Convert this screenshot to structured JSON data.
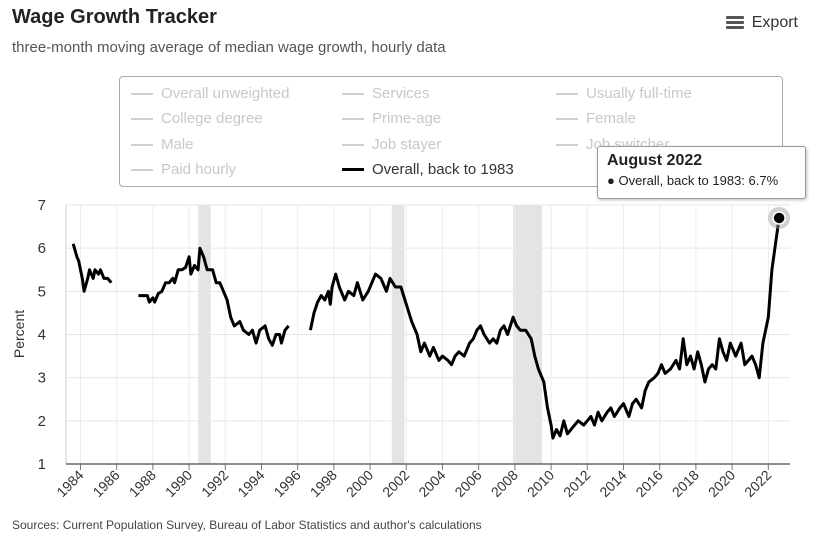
{
  "header": {
    "title": "Wage Growth Tracker",
    "subtitle": "three-month moving average of median wage growth, hourly data",
    "export_label": "Export",
    "export_icon": "menu-icon"
  },
  "legend": {
    "items": [
      {
        "label": "Overall unweighted",
        "active": false
      },
      {
        "label": "Services",
        "active": false
      },
      {
        "label": "Usually full-time",
        "active": false
      },
      {
        "label": "College degree",
        "active": false
      },
      {
        "label": "Prime-age",
        "active": false
      },
      {
        "label": "Female",
        "active": false
      },
      {
        "label": "Male",
        "active": false
      },
      {
        "label": "Job stayer",
        "active": false
      },
      {
        "label": "Job switcher",
        "active": false
      },
      {
        "label": "Paid hourly",
        "active": false
      },
      {
        "label": "Overall, back to 1983",
        "active": true
      }
    ]
  },
  "tooltip": {
    "title": "August 2022",
    "line": "● Overall, back to 1983: 6.7%"
  },
  "source": "Sources: Current Population Survey, Bureau of Labor Statistics and author's calculations",
  "chart_data": {
    "type": "line",
    "ylabel": "Percent",
    "ylim": [
      1,
      7
    ],
    "xlim": [
      1983.2,
      2023.2
    ],
    "yticks": [
      1,
      2,
      3,
      4,
      5,
      6,
      7
    ],
    "xticks": [
      "1984",
      "1986",
      "1988",
      "1990",
      "1992",
      "1994",
      "1996",
      "1998",
      "2000",
      "2002",
      "2004",
      "2006",
      "2008",
      "2010",
      "2012",
      "2014",
      "2016",
      "2018",
      "2020",
      "2022"
    ],
    "grid": true,
    "line_color": "#000000",
    "recession_color": "#e4e4e4",
    "recessions": [
      [
        1990.5,
        1991.2
      ],
      [
        2001.2,
        2001.9
      ],
      [
        2007.9,
        2009.5
      ]
    ],
    "highlight_point": {
      "x": 2022.6,
      "y": 6.7
    },
    "series": [
      {
        "name": "Overall, back to 1983",
        "segments": [
          [
            [
              1983.6,
              6.1
            ],
            [
              1983.8,
              5.8
            ],
            [
              1983.9,
              5.7
            ],
            [
              1984.1,
              5.3
            ],
            [
              1984.2,
              5.0
            ],
            [
              1984.4,
              5.3
            ],
            [
              1984.5,
              5.5
            ],
            [
              1984.7,
              5.3
            ],
            [
              1984.8,
              5.5
            ],
            [
              1985.0,
              5.4
            ],
            [
              1985.1,
              5.5
            ],
            [
              1985.3,
              5.3
            ],
            [
              1985.5,
              5.3
            ],
            [
              1985.7,
              5.2
            ]
          ],
          [
            [
              1987.2,
              4.9
            ],
            [
              1987.5,
              4.9
            ],
            [
              1987.7,
              4.9
            ],
            [
              1987.8,
              4.75
            ],
            [
              1988.0,
              4.85
            ],
            [
              1988.1,
              4.75
            ],
            [
              1988.3,
              4.95
            ],
            [
              1988.5,
              5.0
            ],
            [
              1988.7,
              5.2
            ],
            [
              1988.9,
              5.2
            ],
            [
              1989.1,
              5.3
            ],
            [
              1989.2,
              5.2
            ],
            [
              1989.4,
              5.5
            ],
            [
              1989.6,
              5.5
            ],
            [
              1989.8,
              5.55
            ],
            [
              1990.0,
              5.8
            ],
            [
              1990.1,
              5.4
            ],
            [
              1990.3,
              5.6
            ],
            [
              1990.5,
              5.5
            ],
            [
              1990.6,
              6.0
            ],
            [
              1990.8,
              5.8
            ],
            [
              1991.0,
              5.5
            ],
            [
              1991.3,
              5.5
            ],
            [
              1991.5,
              5.2
            ],
            [
              1991.7,
              5.2
            ],
            [
              1991.9,
              5.0
            ],
            [
              1992.1,
              4.8
            ],
            [
              1992.3,
              4.4
            ],
            [
              1992.5,
              4.2
            ],
            [
              1992.8,
              4.3
            ],
            [
              1993.0,
              4.1
            ],
            [
              1993.3,
              4.0
            ],
            [
              1993.5,
              4.1
            ],
            [
              1993.7,
              3.8
            ],
            [
              1993.9,
              4.1
            ],
            [
              1994.2,
              4.2
            ],
            [
              1994.4,
              3.9
            ],
            [
              1994.6,
              3.75
            ],
            [
              1994.8,
              4.0
            ],
            [
              1995.0,
              4.0
            ],
            [
              1995.1,
              3.8
            ],
            [
              1995.3,
              4.1
            ],
            [
              1995.5,
              4.2
            ]
          ],
          [
            [
              1996.7,
              4.1
            ],
            [
              1996.9,
              4.5
            ],
            [
              1997.1,
              4.75
            ],
            [
              1997.3,
              4.9
            ],
            [
              1997.5,
              4.8
            ],
            [
              1997.7,
              5.0
            ],
            [
              1997.8,
              4.7
            ],
            [
              1997.9,
              5.1
            ],
            [
              1998.1,
              5.4
            ],
            [
              1998.3,
              5.1
            ],
            [
              1998.6,
              4.8
            ],
            [
              1998.8,
              5.0
            ],
            [
              1999.1,
              4.9
            ],
            [
              1999.3,
              5.2
            ],
            [
              1999.6,
              4.8
            ],
            [
              1999.9,
              5.0
            ],
            [
              2000.1,
              5.2
            ],
            [
              2000.3,
              5.4
            ],
            [
              2000.6,
              5.3
            ],
            [
              2000.9,
              5.0
            ],
            [
              2001.1,
              5.3
            ],
            [
              2001.4,
              5.1
            ],
            [
              2001.7,
              5.1
            ],
            [
              2002.0,
              4.7
            ],
            [
              2002.3,
              4.3
            ],
            [
              2002.6,
              4.0
            ],
            [
              2002.8,
              3.6
            ],
            [
              2003.0,
              3.8
            ],
            [
              2003.3,
              3.5
            ],
            [
              2003.5,
              3.7
            ],
            [
              2003.8,
              3.4
            ],
            [
              2004.0,
              3.5
            ],
            [
              2004.3,
              3.4
            ],
            [
              2004.5,
              3.3
            ],
            [
              2004.7,
              3.5
            ],
            [
              2004.9,
              3.6
            ],
            [
              2005.2,
              3.5
            ],
            [
              2005.5,
              3.8
            ],
            [
              2005.7,
              3.9
            ],
            [
              2005.9,
              4.1
            ],
            [
              2006.1,
              4.2
            ],
            [
              2006.3,
              4.0
            ],
            [
              2006.6,
              3.8
            ],
            [
              2006.8,
              3.9
            ],
            [
              2007.0,
              3.8
            ],
            [
              2007.2,
              4.1
            ],
            [
              2007.4,
              4.2
            ],
            [
              2007.6,
              4.0
            ],
            [
              2007.9,
              4.4
            ],
            [
              2008.1,
              4.2
            ],
            [
              2008.3,
              4.1
            ],
            [
              2008.6,
              4.1
            ],
            [
              2008.9,
              3.9
            ],
            [
              2009.1,
              3.5
            ],
            [
              2009.3,
              3.2
            ],
            [
              2009.6,
              2.9
            ],
            [
              2009.8,
              2.3
            ],
            [
              2010.0,
              1.9
            ],
            [
              2010.1,
              1.6
            ],
            [
              2010.3,
              1.8
            ],
            [
              2010.5,
              1.65
            ],
            [
              2010.7,
              2.0
            ],
            [
              2010.9,
              1.7
            ],
            [
              2011.1,
              1.8
            ],
            [
              2011.3,
              1.9
            ],
            [
              2011.5,
              2.0
            ],
            [
              2011.8,
              1.9
            ],
            [
              2012.0,
              2.0
            ],
            [
              2012.2,
              2.1
            ],
            [
              2012.4,
              1.9
            ],
            [
              2012.6,
              2.2
            ],
            [
              2012.8,
              2.0
            ],
            [
              2013.1,
              2.2
            ],
            [
              2013.3,
              2.3
            ],
            [
              2013.5,
              2.1
            ],
            [
              2013.8,
              2.3
            ],
            [
              2014.0,
              2.4
            ],
            [
              2014.3,
              2.1
            ],
            [
              2014.5,
              2.4
            ],
            [
              2014.7,
              2.5
            ],
            [
              2015.0,
              2.3
            ],
            [
              2015.2,
              2.7
            ],
            [
              2015.4,
              2.9
            ],
            [
              2015.7,
              3.0
            ],
            [
              2015.9,
              3.1
            ],
            [
              2016.1,
              3.3
            ],
            [
              2016.3,
              3.1
            ],
            [
              2016.6,
              3.2
            ],
            [
              2016.9,
              3.4
            ],
            [
              2017.1,
              3.2
            ],
            [
              2017.3,
              3.9
            ],
            [
              2017.5,
              3.3
            ],
            [
              2017.7,
              3.5
            ],
            [
              2017.9,
              3.2
            ],
            [
              2018.1,
              3.6
            ],
            [
              2018.3,
              3.3
            ],
            [
              2018.5,
              2.9
            ],
            [
              2018.7,
              3.2
            ],
            [
              2018.9,
              3.3
            ],
            [
              2019.1,
              3.2
            ],
            [
              2019.3,
              3.9
            ],
            [
              2019.5,
              3.6
            ],
            [
              2019.7,
              3.4
            ],
            [
              2019.9,
              3.8
            ],
            [
              2020.2,
              3.5
            ],
            [
              2020.5,
              3.8
            ],
            [
              2020.7,
              3.3
            ],
            [
              2020.9,
              3.4
            ],
            [
              2021.1,
              3.5
            ],
            [
              2021.3,
              3.3
            ],
            [
              2021.5,
              3.0
            ],
            [
              2021.7,
              3.8
            ],
            [
              2021.9,
              4.2
            ],
            [
              2022.0,
              4.4
            ],
            [
              2022.2,
              5.5
            ],
            [
              2022.4,
              6.1
            ],
            [
              2022.6,
              6.7
            ]
          ]
        ]
      }
    ]
  }
}
